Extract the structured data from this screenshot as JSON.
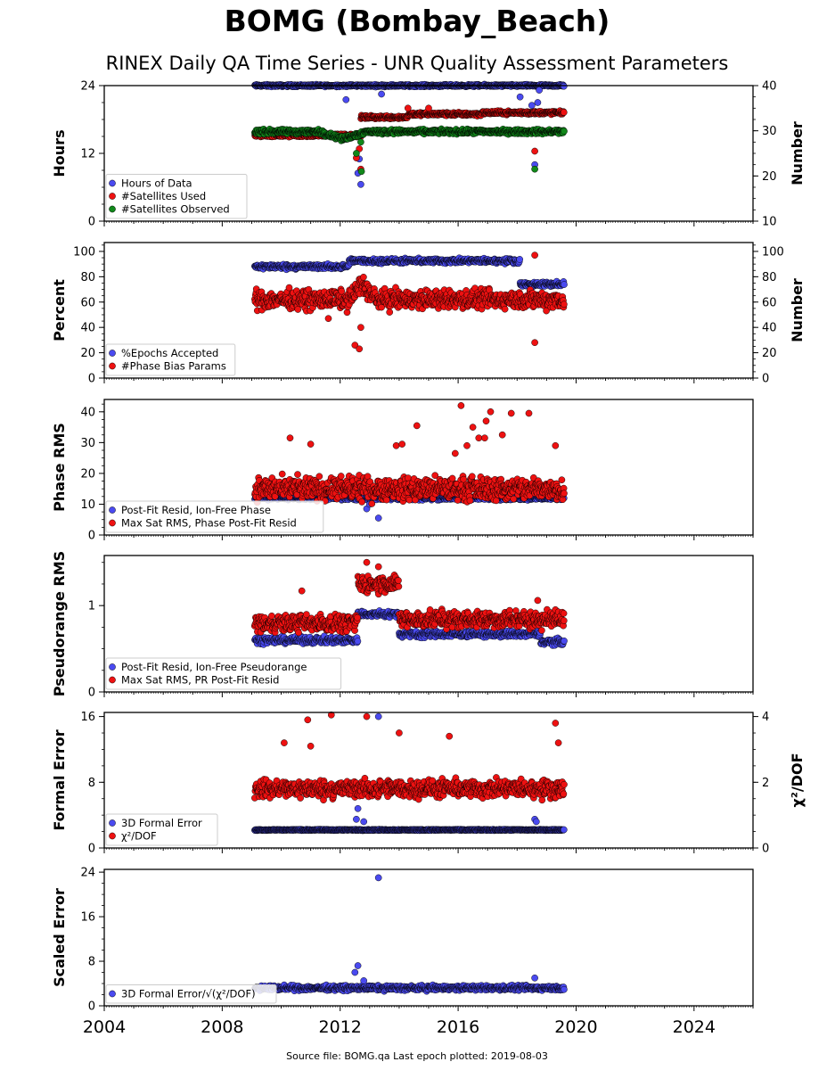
{
  "title": "BOMG (Bombay_Beach)",
  "subtitle": "RINEX Daily QA Time Series - UNR Quality Assessment Parameters",
  "footer": "Source file: BOMG.qa Last epoch plotted: 2019-08-03",
  "colors": {
    "blue": "#4a4af0",
    "red": "#ee1111",
    "green": "#11881a"
  },
  "chart_data": [
    {
      "type": "scatter",
      "ylabel": "Hours",
      "ylabel_right": "Number",
      "xlim": [
        2004,
        2026
      ],
      "ylim": [
        0,
        24
      ],
      "ylim_right": [
        10,
        40
      ],
      "yticks": [
        "0",
        "12",
        "24"
      ],
      "yticks_right": [
        "10",
        "20",
        "30",
        "40"
      ],
      "legend": [
        "Hours of Data",
        "#Satellites Used",
        "#Satellites Observed"
      ],
      "series": [
        {
          "name": "Hours of Data",
          "color": "blue",
          "axis": "left",
          "base": 24,
          "spread": 0.15,
          "start": 2009.1,
          "end": 2019.6,
          "outliers": [
            [
              2012.2,
              21.5
            ],
            [
              2012.6,
              8.5
            ],
            [
              2012.65,
              11.0
            ],
            [
              2012.7,
              6.5
            ],
            [
              2013.4,
              22.5
            ],
            [
              2018.1,
              22.0
            ],
            [
              2018.5,
              20.5
            ],
            [
              2018.6,
              10.0
            ],
            [
              2018.7,
              21.0
            ],
            [
              2018.75,
              23.2
            ]
          ]
        },
        {
          "name": "#Satellites Used",
          "color": "red",
          "axis": "right",
          "base": 29,
          "spread": 0.3,
          "start": 2009.1,
          "end": 2012.7,
          "segments": [
            [
              2012.7,
              2014.3,
              33.0
            ],
            [
              2014.3,
              2016.8,
              33.7
            ],
            [
              2016.8,
              2019.6,
              34.0
            ]
          ],
          "outliers": [
            [
              2012.55,
              24.0
            ],
            [
              2012.7,
              21.5
            ],
            [
              2012.65,
              26.0
            ],
            [
              2018.6,
              25.5
            ],
            [
              2014.3,
              35.0
            ],
            [
              2015.0,
              35.0
            ]
          ]
        },
        {
          "name": "#Satellites Observed",
          "color": "green",
          "axis": "right",
          "base": 29.8,
          "spread": 0.4,
          "start": 2009.1,
          "end": 2019.6,
          "dip": [
            2011.3,
            2012.9,
            28.2
          ],
          "outliers": [
            [
              2012.55,
              25.0
            ],
            [
              2012.7,
              27.5
            ],
            [
              2012.72,
              21.0
            ],
            [
              2018.6,
              21.5
            ]
          ]
        }
      ]
    },
    {
      "type": "scatter",
      "ylabel": "Percent",
      "ylabel_right": "Number",
      "xlim": [
        2004,
        2026
      ],
      "ylim": [
        0,
        107
      ],
      "ylim_right": [
        0,
        107
      ],
      "yticks": [
        "0",
        "20",
        "40",
        "60",
        "80",
        "100"
      ],
      "yticks_right": [
        "0",
        "20",
        "40",
        "60",
        "80",
        "100"
      ],
      "legend": [
        "%Epochs Accepted",
        "#Phase Bias Params"
      ],
      "series": [
        {
          "name": "%Epochs Accepted",
          "color": "blue",
          "axis": "left",
          "base": 88,
          "spread": 1.5,
          "start": 2009.1,
          "end": 2018.1,
          "segments": [
            [
              2012.3,
              2018.1,
              92.5
            ],
            [
              2018.1,
              2019.6,
              74.0
            ]
          ],
          "outliers": []
        },
        {
          "name": "#Phase Bias Params",
          "color": "red",
          "axis": "right",
          "base": 62,
          "spread": 6,
          "start": 2009.1,
          "end": 2019.6,
          "bump": [
            2012.3,
            2013.2,
            75
          ],
          "outliers": [
            [
              2011.6,
              47.0
            ],
            [
              2012.5,
              26.0
            ],
            [
              2012.65,
              23.0
            ],
            [
              2012.7,
              40.0
            ],
            [
              2018.6,
              28.0
            ],
            [
              2018.6,
              97.0
            ]
          ]
        }
      ]
    },
    {
      "type": "scatter",
      "ylabel": "Phase RMS",
      "ylabel_right": "",
      "xlim": [
        2004,
        2026
      ],
      "ylim": [
        0,
        44
      ],
      "yticks": [
        "0",
        "10",
        "20",
        "30",
        "40"
      ],
      "yticks_right": [],
      "legend": [
        "Post-Fit Resid, Ion-Free Phase",
        "Max Sat RMS, Phase Post-Fit Resid"
      ],
      "series": [
        {
          "name": "Post-Fit Resid, Ion-Free Phase",
          "color": "blue",
          "axis": "left",
          "base": 12.0,
          "spread": 0.5,
          "start": 2009.1,
          "end": 2019.6,
          "outliers": [
            [
              2012.9,
              8.5
            ],
            [
              2013.3,
              5.5
            ],
            [
              2013.0,
              10.0
            ]
          ]
        },
        {
          "name": "Max Sat RMS, Phase Post-Fit Resid",
          "color": "red",
          "axis": "left",
          "base": 15,
          "spread": 3,
          "start": 2009.1,
          "end": 2019.6,
          "outliers": [
            [
              2010.3,
              31.5
            ],
            [
              2011.0,
              29.5
            ],
            [
              2013.9,
              29.0
            ],
            [
              2014.1,
              29.5
            ],
            [
              2014.6,
              35.5
            ],
            [
              2015.9,
              26.5
            ],
            [
              2016.1,
              42.0
            ],
            [
              2016.3,
              29.0
            ],
            [
              2016.5,
              35.0
            ],
            [
              2016.7,
              31.5
            ],
            [
              2016.9,
              31.5
            ],
            [
              2016.95,
              37.0
            ],
            [
              2017.1,
              40.0
            ],
            [
              2017.5,
              32.5
            ],
            [
              2017.8,
              39.5
            ],
            [
              2018.4,
              39.5
            ],
            [
              2019.3,
              29.0
            ]
          ]
        }
      ]
    },
    {
      "type": "scatter",
      "ylabel": "Pseudorange RMS",
      "ylabel_right": "",
      "xlim": [
        2004,
        2026
      ],
      "ylim": [
        0,
        1.58
      ],
      "yticks": [
        "0",
        "1"
      ],
      "yticks_right": [],
      "legend": [
        "Post-Fit Resid, Ion-Free Pseudorange",
        "Max Sat RMS, PR Post-Fit Resid"
      ],
      "series": [
        {
          "name": "Post-Fit Resid, Ion-Free Pseudorange",
          "color": "blue",
          "axis": "left",
          "base": 0.6,
          "spread": 0.03,
          "start": 2009.1,
          "end": 2019.6,
          "segments": [
            [
              2012.6,
              2014.0,
              0.9
            ],
            [
              2014.0,
              2018.8,
              0.67
            ],
            [
              2018.8,
              2019.6,
              0.58
            ]
          ],
          "outliers": []
        },
        {
          "name": "Max Sat RMS, PR Post-Fit Resid",
          "color": "red",
          "axis": "left",
          "base": 0.8,
          "spread": 0.08,
          "start": 2009.1,
          "end": 2019.6,
          "segments": [
            [
              2012.6,
              2014.0,
              1.25
            ],
            [
              2014.0,
              2019.6,
              0.84
            ]
          ],
          "outliers": [
            [
              2010.7,
              1.17
            ],
            [
              2012.9,
              1.5
            ],
            [
              2013.3,
              1.45
            ],
            [
              2018.7,
              1.06
            ]
          ]
        }
      ]
    },
    {
      "type": "scatter",
      "ylabel": "Formal Error",
      "ylabel_right": "χ²/DOF",
      "xlim": [
        2004,
        2026
      ],
      "ylim": [
        0,
        16.5
      ],
      "ylim_right": [
        0,
        4.125
      ],
      "yticks": [
        "0",
        "8",
        "16"
      ],
      "yticks_right": [
        "0",
        "2",
        "4"
      ],
      "legend": [
        "3D Formal Error",
        "χ²/DOF"
      ],
      "series": [
        {
          "name": "3D Formal Error",
          "color": "blue",
          "axis": "left",
          "base": 2.2,
          "spread": 0.05,
          "start": 2009.1,
          "end": 2019.6,
          "outliers": [
            [
              2012.6,
              4.8
            ],
            [
              2012.55,
              3.5
            ],
            [
              2012.8,
              3.2
            ],
            [
              2013.3,
              16.0
            ],
            [
              2018.6,
              3.5
            ],
            [
              2018.65,
              3.2
            ]
          ]
        },
        {
          "name": "χ²/DOF",
          "color": "red",
          "axis": "right",
          "base": 1.8,
          "spread": 0.22,
          "start": 2009.1,
          "end": 2019.6,
          "outliers": [
            [
              2010.9,
              3.9
            ],
            [
              2011.7,
              4.05
            ],
            [
              2012.9,
              4.0
            ],
            [
              2014.0,
              3.5
            ],
            [
              2015.7,
              3.4
            ],
            [
              2019.3,
              3.8
            ],
            [
              2019.4,
              3.2
            ],
            [
              2010.1,
              3.2
            ],
            [
              2011.0,
              3.1
            ]
          ]
        }
      ]
    },
    {
      "type": "scatter",
      "ylabel": "Scaled Error",
      "ylabel_right": "",
      "xlim": [
        2004,
        2026
      ],
      "ylim": [
        0,
        24.5
      ],
      "yticks": [
        "0",
        "8",
        "16",
        "24"
      ],
      "yticks_right": [],
      "xticks": [
        "2004",
        "2008",
        "2012",
        "2016",
        "2020",
        "2024"
      ],
      "legend": [
        "3D Formal Error/√(χ²/DOF)"
      ],
      "series": [
        {
          "name": "3D Formal Error/√(χ²/DOF)",
          "color": "blue",
          "axis": "left",
          "base": 3.2,
          "spread": 0.35,
          "start": 2009.1,
          "end": 2019.6,
          "outliers": [
            [
              2012.5,
              6.0
            ],
            [
              2012.6,
              7.2
            ],
            [
              2012.8,
              4.5
            ],
            [
              2013.3,
              23.0
            ],
            [
              2018.6,
              5.0
            ]
          ]
        }
      ]
    }
  ]
}
